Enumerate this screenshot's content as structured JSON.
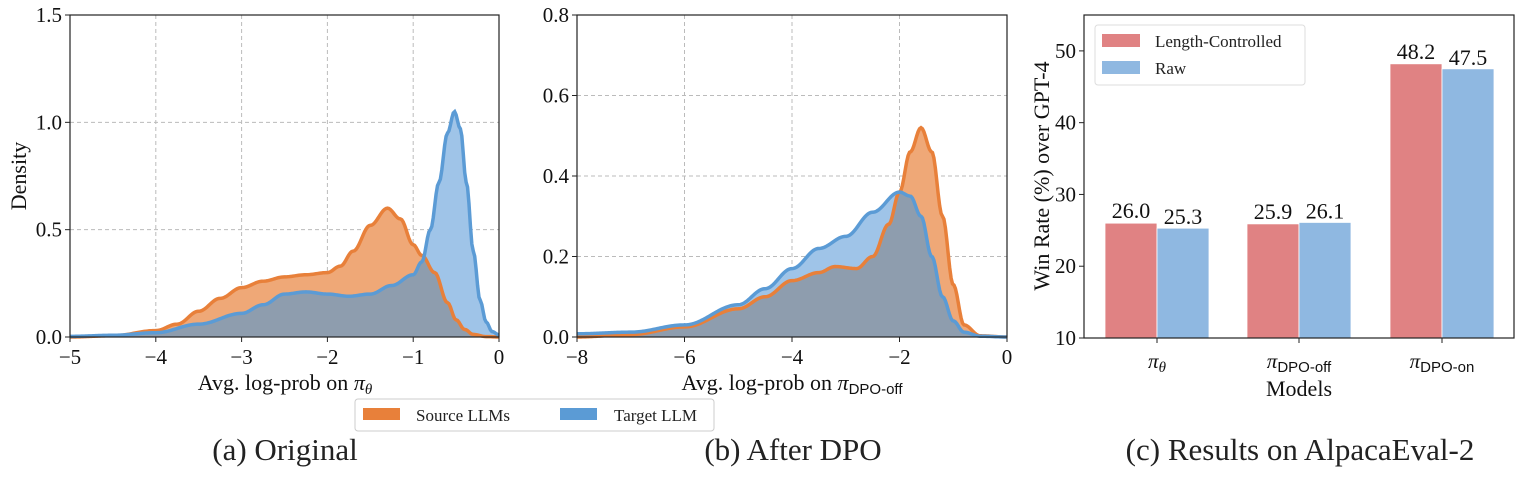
{
  "legend_bottom": {
    "items": [
      {
        "label": "Source LLMs",
        "color": "#E8803A"
      },
      {
        "label": "Target LLM",
        "color": "#5B9BD5"
      }
    ]
  },
  "chart_data": [
    {
      "type": "area",
      "caption": "(a) Original",
      "xlabel": {
        "prefix": "Avg. log-prob on ",
        "symbol": "π",
        "sub": "θ"
      },
      "ylabel": "Density",
      "xlim": [
        -5,
        0
      ],
      "ylim": [
        0,
        1.5
      ],
      "xticks": [
        -5,
        -4,
        -3,
        -2,
        -1,
        0
      ],
      "yticks": [
        0.0,
        0.5,
        1.0,
        1.5
      ],
      "ytick_labels": [
        "0.0",
        "0.5",
        "1.0",
        "1.5"
      ],
      "xtick_labels": [
        "−5",
        "−4",
        "−3",
        "−2",
        "−1",
        "0"
      ],
      "grid": true,
      "series": [
        {
          "name": "Source LLMs",
          "color": "#E8803A",
          "x": [
            -5,
            -4.5,
            -4,
            -3.75,
            -3.5,
            -3.25,
            -3,
            -2.75,
            -2.5,
            -2.25,
            -2,
            -1.85,
            -1.7,
            -1.5,
            -1.3,
            -1.15,
            -1.0,
            -0.9,
            -0.75,
            -0.6,
            -0.5,
            -0.4,
            -0.3,
            -0.15,
            0
          ],
          "y": [
            0.0,
            0.006,
            0.03,
            0.06,
            0.12,
            0.18,
            0.23,
            0.26,
            0.28,
            0.29,
            0.3,
            0.33,
            0.4,
            0.52,
            0.6,
            0.55,
            0.43,
            0.38,
            0.3,
            0.16,
            0.08,
            0.035,
            0.012,
            0.002,
            0.0
          ]
        },
        {
          "name": "Target LLM",
          "color": "#5B9BD5",
          "x": [
            -5,
            -4.5,
            -4,
            -3.5,
            -3,
            -2.75,
            -2.5,
            -2.25,
            -2,
            -1.75,
            -1.5,
            -1.25,
            -1.0,
            -0.9,
            -0.8,
            -0.7,
            -0.6,
            -0.52,
            -0.45,
            -0.38,
            -0.3,
            -0.22,
            -0.15,
            -0.08,
            0
          ],
          "y": [
            0.003,
            0.008,
            0.02,
            0.06,
            0.11,
            0.15,
            0.2,
            0.21,
            0.2,
            0.19,
            0.2,
            0.24,
            0.29,
            0.35,
            0.5,
            0.72,
            0.95,
            1.05,
            0.97,
            0.72,
            0.4,
            0.17,
            0.07,
            0.025,
            0.01
          ]
        }
      ]
    },
    {
      "type": "area",
      "caption": "(b) After DPO",
      "xlabel": {
        "prefix": "Avg. log-prob on ",
        "symbol": "π",
        "sub": "DPO-off"
      },
      "ylabel": "",
      "xlim": [
        -8,
        0
      ],
      "ylim": [
        0,
        0.8
      ],
      "xticks": [
        -8,
        -6,
        -4,
        -2,
        0
      ],
      "yticks": [
        0.0,
        0.2,
        0.4,
        0.6,
        0.8
      ],
      "ytick_labels": [
        "0.0",
        "0.2",
        "0.4",
        "0.6",
        "0.8"
      ],
      "xtick_labels": [
        "−8",
        "−6",
        "−4",
        "−2",
        "0"
      ],
      "grid": true,
      "series": [
        {
          "name": "Source LLMs",
          "color": "#E8803A",
          "x": [
            -8,
            -7,
            -6,
            -5,
            -4.5,
            -4,
            -3.5,
            -3.2,
            -2.8,
            -2.5,
            -2.2,
            -2.0,
            -1.8,
            -1.6,
            -1.4,
            -1.2,
            -1.0,
            -0.8,
            -0.5,
            0
          ],
          "y": [
            0.0,
            0.006,
            0.025,
            0.07,
            0.1,
            0.14,
            0.16,
            0.175,
            0.17,
            0.2,
            0.28,
            0.36,
            0.46,
            0.52,
            0.46,
            0.3,
            0.13,
            0.03,
            0.003,
            0.0
          ]
        },
        {
          "name": "Target LLM",
          "color": "#5B9BD5",
          "x": [
            -8,
            -7,
            -6,
            -5,
            -4.5,
            -4,
            -3.5,
            -3,
            -2.5,
            -2.0,
            -1.8,
            -1.6,
            -1.4,
            -1.2,
            -1.0,
            -0.8,
            -0.5,
            0
          ],
          "y": [
            0.008,
            0.012,
            0.03,
            0.08,
            0.12,
            0.17,
            0.22,
            0.25,
            0.31,
            0.36,
            0.35,
            0.3,
            0.2,
            0.1,
            0.04,
            0.012,
            0.002,
            0.0
          ]
        }
      ]
    },
    {
      "type": "bar",
      "caption": "(c) Results on AlpacaEval-2",
      "xlabel": "Models",
      "ylabel": "Win Rate (%) over GPT-4",
      "ylim": [
        10,
        55
      ],
      "yticks": [
        10,
        20,
        30,
        40,
        50
      ],
      "categories": [
        {
          "symbol": "π",
          "sub": "θ"
        },
        {
          "symbol": "π",
          "sub": "DPO-off"
        },
        {
          "symbol": "π",
          "sub": "DPO-on"
        }
      ],
      "legend": "top-left",
      "grid": false,
      "series": [
        {
          "name": "Length-Controlled",
          "color": "#E08283",
          "values": [
            26.0,
            25.9,
            48.2
          ],
          "labels": [
            "26.0",
            "25.9",
            "48.2"
          ]
        },
        {
          "name": "Raw",
          "color": "#8FB8E1",
          "values": [
            25.3,
            26.1,
            47.5
          ],
          "labels": [
            "25.3",
            "26.1",
            "47.5"
          ]
        }
      ]
    }
  ]
}
